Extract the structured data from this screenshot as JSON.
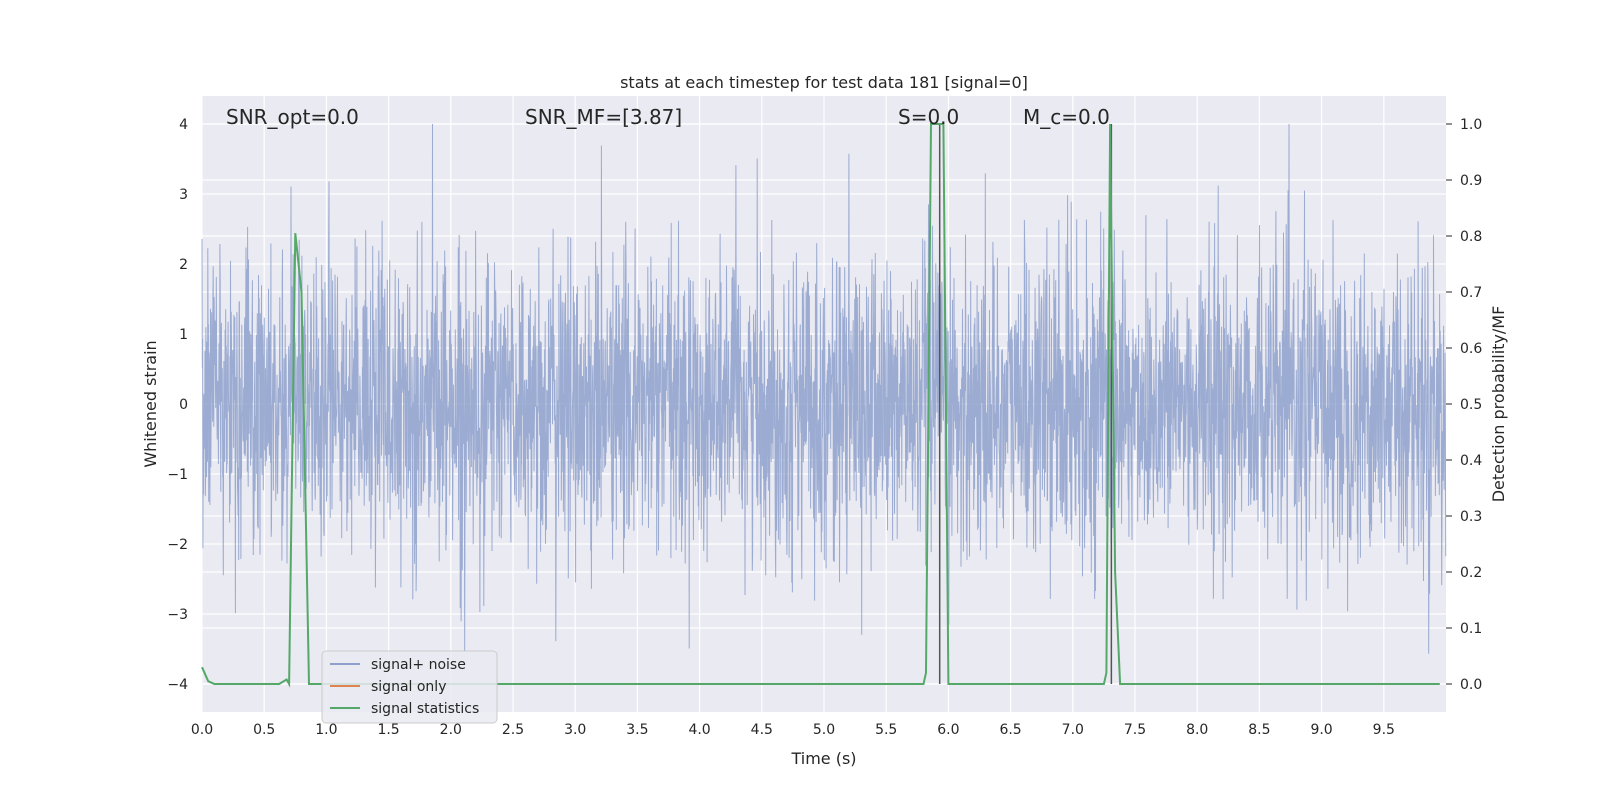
{
  "chart_data": {
    "type": "line",
    "title": "stats at each timestep for test data 181 [signal=0]",
    "xlabel": "Time (s)",
    "ylabel_left": "Whitened strain",
    "ylabel_right": "Detection probability/MF",
    "xlim": [
      0.0,
      10.0
    ],
    "ylim_left": [
      -4.4,
      4.4
    ],
    "ylim_right": [
      -0.05,
      1.05
    ],
    "xticks": [
      "0.0",
      "0.5",
      "1.0",
      "1.5",
      "2.0",
      "2.5",
      "3.0",
      "3.5",
      "4.0",
      "4.5",
      "5.0",
      "5.5",
      "6.0",
      "6.5",
      "7.0",
      "7.5",
      "8.0",
      "8.5",
      "9.0",
      "9.5"
    ],
    "xtick_values": [
      0.0,
      0.5,
      1.0,
      1.5,
      2.0,
      2.5,
      3.0,
      3.5,
      4.0,
      4.5,
      5.0,
      5.5,
      6.0,
      6.5,
      7.0,
      7.5,
      8.0,
      8.5,
      9.0,
      9.5
    ],
    "yticks_left": [
      "4",
      "3",
      "2",
      "1",
      "0",
      "−1",
      "−2",
      "−3",
      "−4"
    ],
    "ytick_values_left": [
      4,
      3,
      2,
      1,
      0,
      -1,
      -2,
      -3,
      -4
    ],
    "yticks_right": [
      "1.0",
      "0.9",
      "0.8",
      "0.7",
      "0.6",
      "0.5",
      "0.4",
      "0.3",
      "0.2",
      "0.1",
      "0.0"
    ],
    "ytick_values_right": [
      1.0,
      0.9,
      0.8,
      0.7,
      0.6,
      0.5,
      0.4,
      0.3,
      0.2,
      0.1,
      0.0
    ],
    "grid": true,
    "legend_position": "lower-left",
    "annotations": [
      {
        "text": "SNR_opt=0.0",
        "x": 0.2
      },
      {
        "text": "SNR_MF=[3.87]",
        "x": 2.6
      },
      {
        "text": "S=0.0",
        "x": 5.55
      },
      {
        "text": "M_c=0.0",
        "x": 6.6
      }
    ],
    "noise_envelope": {
      "amplitude_typical": 1.6,
      "amplitude_max": 4.0,
      "n_samples": 4096
    },
    "series": [
      {
        "name": "signal+ noise",
        "color": "#8da0cb",
        "axis": "left"
      },
      {
        "name": "signal only",
        "color": "#dd8452",
        "axis": "left"
      },
      {
        "name": "signal statistics",
        "color": "#55a868",
        "axis": "right",
        "x": [
          0.0,
          0.05,
          0.1,
          0.62,
          0.68,
          0.7,
          0.75,
          0.8,
          0.86,
          5.8,
          5.82,
          5.86,
          5.96,
          6.0,
          7.25,
          7.27,
          7.3,
          7.34,
          7.38,
          9.95
        ],
        "y": [
          0.03,
          0.005,
          0.0,
          0.0,
          0.008,
          0.0,
          0.805,
          0.7,
          0.0,
          0.0,
          0.02,
          1.0,
          1.0,
          0.0,
          0.0,
          0.02,
          1.0,
          0.2,
          0.0,
          0.0
        ]
      }
    ],
    "vertical_lines": [
      5.93,
      7.31
    ]
  }
}
